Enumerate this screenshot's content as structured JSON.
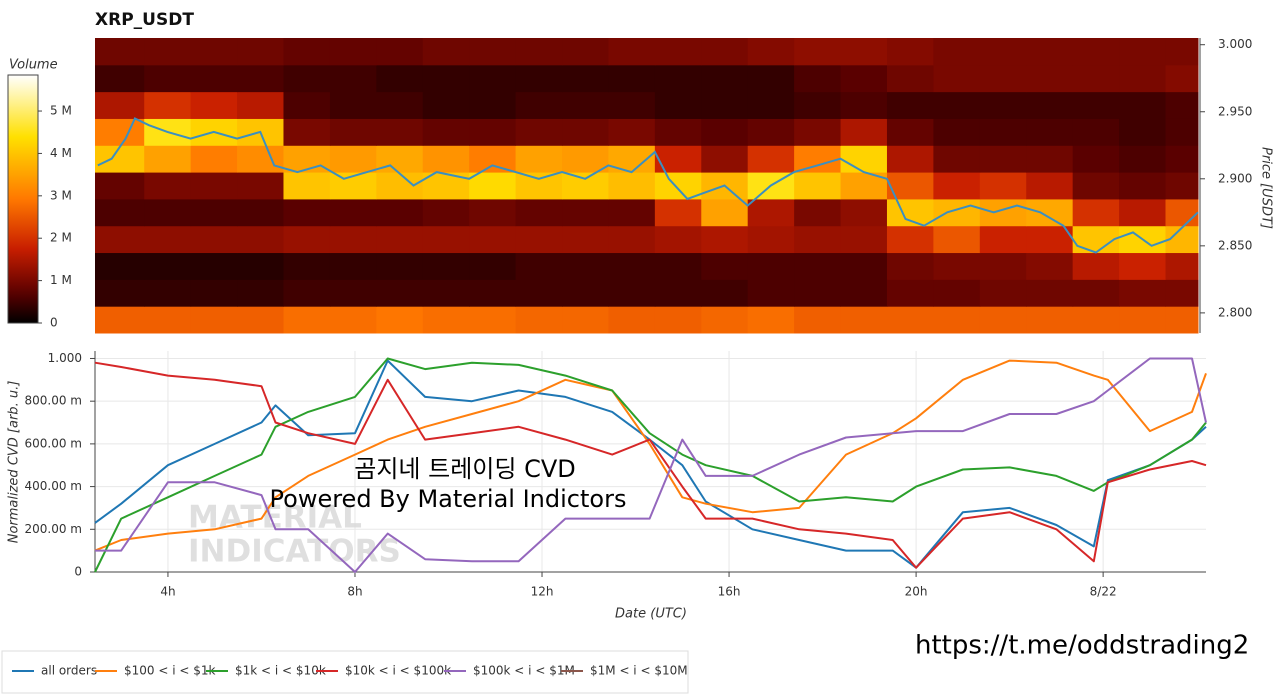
{
  "chart_data": [
    {
      "type": "heatmap",
      "title": "XRP_USDT",
      "y_label": "Price [USDT]",
      "xlim": [
        2.44,
        26.2
      ],
      "ylim": [
        2.785,
        3.005
      ],
      "yticks": [
        {
          "value": 2.8,
          "label": "2.800"
        },
        {
          "value": 2.85,
          "label": "2.850"
        },
        {
          "value": 2.9,
          "label": "2.900"
        },
        {
          "value": 2.95,
          "label": "2.950"
        },
        {
          "value": 3,
          "label": "3.000"
        }
      ],
      "x_bins": [
        2.44,
        3.5,
        4.5,
        5.5,
        6.5,
        7.5,
        8.5,
        9.5,
        10.5,
        11.5,
        12.5,
        13.5,
        14.5,
        15.5,
        16.5,
        17.5,
        18.5,
        19.5,
        20.5,
        21.5,
        22.5,
        23.5,
        24.5,
        25.5,
        26.2
      ],
      "y_bins": [
        2.785,
        2.805,
        2.825,
        2.845,
        2.865,
        2.885,
        2.905,
        2.925,
        2.945,
        2.965,
        2.985,
        3.005
      ],
      "values": [
        [
          2600000.0,
          2600000.0,
          2600000.0,
          2600000.0,
          2800000.0,
          2800000.0,
          2900000.0,
          2800000.0,
          2800000.0,
          2700000.0,
          2700000.0,
          2600000.0,
          2600000.0,
          2700000.0,
          2800000.0,
          2600000.0,
          2600000.0,
          2600000.0,
          2600000.0,
          2600000.0,
          2600000.0,
          2600000.0,
          2600000.0,
          2600000.0
        ],
        [
          400000.0,
          400000.0,
          400000.0,
          400000.0,
          500000.0,
          500000.0,
          500000.0,
          500000.0,
          500000.0,
          500000.0,
          500000.0,
          500000.0,
          500000.0,
          500000.0,
          600000.0,
          600000.0,
          600000.0,
          800000.0,
          800000.0,
          900000.0,
          900000.0,
          900000.0,
          1000000.0,
          1000000.0
        ],
        [
          300000.0,
          300000.0,
          300000.0,
          300000.0,
          400000.0,
          400000.0,
          400000.0,
          400000.0,
          400000.0,
          500000.0,
          500000.0,
          500000.0,
          500000.0,
          600000.0,
          600000.0,
          600000.0,
          600000.0,
          900000.0,
          1000000.0,
          1000000.0,
          1100000.0,
          1600000.0,
          1800000.0,
          1500000.0
        ],
        [
          1200000.0,
          1200000.0,
          1200000.0,
          1200000.0,
          1300000.0,
          1300000.0,
          1300000.0,
          1300000.0,
          1300000.0,
          1300000.0,
          1300000.0,
          1300000.0,
          1400000.0,
          1500000.0,
          1400000.0,
          1300000.0,
          1300000.0,
          2000000.0,
          2500000.0,
          1800000.0,
          1800000.0,
          4000000.0,
          4200000.0,
          3800000.0
        ],
        [
          600000.0,
          600000.0,
          600000.0,
          600000.0,
          700000.0,
          700000.0,
          700000.0,
          800000.0,
          900000.0,
          800000.0,
          800000.0,
          800000.0,
          2000000.0,
          3500000.0,
          1500000.0,
          1000000.0,
          1200000.0,
          4000000.0,
          3800000.0,
          3500000.0,
          3600000.0,
          2000000.0,
          1600000.0,
          2500000.0
        ],
        [
          800000.0,
          1000000.0,
          1000000.0,
          1000000.0,
          4000000.0,
          4100000.0,
          3900000.0,
          4000000.0,
          4300000.0,
          4000000.0,
          4100000.0,
          3900000.0,
          4200000.0,
          3800000.0,
          4500000.0,
          4000000.0,
          3500000.0,
          2500000.0,
          1800000.0,
          2000000.0,
          1600000.0,
          900000.0,
          800000.0,
          900000.0
        ],
        [
          4000000.0,
          3500000.0,
          3000000.0,
          3200000.0,
          3500000.0,
          3400000.0,
          3600000.0,
          3300000.0,
          3000000.0,
          3500000.0,
          3400000.0,
          3600000.0,
          1800000.0,
          1200000.0,
          2000000.0,
          3000000.0,
          4200000.0,
          1500000.0,
          900000.0,
          900000.0,
          900000.0,
          700000.0,
          600000.0,
          700000.0
        ],
        [
          3000000.0,
          4500000.0,
          4200000.0,
          4000000.0,
          1000000.0,
          900000.0,
          900000.0,
          800000.0,
          800000.0,
          900000.0,
          900000.0,
          1000000.0,
          800000.0,
          700000.0,
          800000.0,
          1000000.0,
          1500000.0,
          800000.0,
          600000.0,
          600000.0,
          600000.0,
          600000.0,
          500000.0,
          600000.0
        ],
        [
          1500000.0,
          2000000.0,
          1800000.0,
          1600000.0,
          600000.0,
          500000.0,
          500000.0,
          400000.0,
          400000.0,
          500000.0,
          500000.0,
          500000.0,
          400000.0,
          400000.0,
          400000.0,
          500000.0,
          600000.0,
          500000.0,
          500000.0,
          500000.0,
          500000.0,
          500000.0,
          500000.0,
          600000.0
        ],
        [
          500000.0,
          600000.0,
          600000.0,
          600000.0,
          500000.0,
          500000.0,
          400000.0,
          400000.0,
          400000.0,
          400000.0,
          400000.0,
          400000.0,
          400000.0,
          400000.0,
          400000.0,
          600000.0,
          700000.0,
          900000.0,
          1000000.0,
          1000000.0,
          1000000.0,
          1000000.0,
          1000000.0,
          1100000.0
        ],
        [
          900000.0,
          900000.0,
          900000.0,
          900000.0,
          800000.0,
          800000.0,
          800000.0,
          900000.0,
          900000.0,
          900000.0,
          900000.0,
          1000000.0,
          1000000.0,
          1000000.0,
          1100000.0,
          1200000.0,
          1200000.0,
          1100000.0,
          1000000.0,
          1000000.0,
          1000000.0,
          1000000.0,
          1000000.0,
          1000000.0
        ]
      ],
      "colorbar": {
        "label": "Volume",
        "lim": [
          0,
          5850000.0
        ],
        "ticks": [
          0,
          {
            "value": 1000000.0,
            "label": "1 M"
          },
          {
            "value": 2000000.0,
            "label": "2 M"
          },
          {
            "value": 3000000.0,
            "label": "3 M"
          },
          {
            "value": 4000000.0,
            "label": "4 M"
          },
          {
            "value": 5000000.0,
            "label": "5 M"
          }
        ]
      },
      "line": {
        "color": "#3b8fc0",
        "x": [
          2.5,
          2.8,
          3.1,
          3.3,
          3.6,
          4.0,
          4.5,
          5.0,
          5.5,
          6.0,
          6.3,
          6.8,
          7.3,
          7.8,
          8.3,
          8.8,
          9.3,
          9.8,
          10.5,
          11.0,
          11.5,
          12.0,
          12.5,
          13.0,
          13.5,
          14.0,
          14.5,
          14.8,
          15.2,
          15.6,
          16.0,
          16.5,
          17.0,
          17.5,
          18.0,
          18.5,
          19.0,
          19.5,
          19.9,
          20.3,
          20.8,
          21.3,
          21.8,
          22.3,
          22.8,
          23.3,
          23.6,
          24.0,
          24.4,
          24.8,
          25.2,
          25.6,
          26.2
        ],
        "values": [
          2.91,
          2.915,
          2.93,
          2.945,
          2.94,
          2.935,
          2.93,
          2.935,
          2.93,
          2.935,
          2.91,
          2.905,
          2.91,
          2.9,
          2.905,
          2.91,
          2.895,
          2.905,
          2.9,
          2.91,
          2.905,
          2.9,
          2.905,
          2.9,
          2.91,
          2.905,
          2.92,
          2.9,
          2.885,
          2.89,
          2.895,
          2.88,
          2.895,
          2.905,
          2.91,
          2.915,
          2.905,
          2.9,
          2.87,
          2.865,
          2.875,
          2.88,
          2.875,
          2.88,
          2.875,
          2.865,
          2.85,
          2.845,
          2.855,
          2.86,
          2.85,
          2.855,
          2.875
        ]
      }
    },
    {
      "type": "line",
      "x_label": "Date (UTC)",
      "y_label": "Normalized CVD [arb. u.]",
      "xlim": [
        2.44,
        26.2
      ],
      "ylim": [
        0,
        1.035
      ],
      "grid": true,
      "xticks": [
        {
          "value": 4,
          "label": "4h"
        },
        {
          "value": 8,
          "label": "8h"
        },
        {
          "value": 12,
          "label": "12h"
        },
        {
          "value": 16,
          "label": "16h"
        },
        {
          "value": 20,
          "label": "20h"
        },
        {
          "value": 24,
          "label": "8/22"
        }
      ],
      "yticks": [
        0,
        {
          "value": 0.2,
          "label": "200.00 m"
        },
        {
          "value": 0.4,
          "label": "400.00 m"
        },
        {
          "value": 0.6,
          "label": "600.00 m"
        },
        {
          "value": 0.8,
          "label": "800.00 m"
        },
        {
          "value": 1,
          "label": "1.000"
        }
      ],
      "x": [
        2.44,
        3,
        4,
        5,
        6,
        6.3,
        7,
        8,
        8.7,
        9.5,
        10.5,
        11.5,
        12.5,
        13.5,
        14.3,
        15,
        15.5,
        16.5,
        17.5,
        18.5,
        19.5,
        20,
        21,
        22,
        23,
        23.8,
        24.1,
        25,
        25.9,
        26.2
      ],
      "series": [
        {
          "name": "all orders",
          "color": "#1f77b4",
          "values": [
            0.23,
            0.32,
            0.5,
            0.6,
            0.7,
            0.78,
            0.64,
            0.65,
            0.99,
            0.82,
            0.8,
            0.85,
            0.82,
            0.75,
            0.62,
            0.5,
            0.33,
            0.2,
            0.15,
            0.1,
            0.1,
            0.02,
            0.28,
            0.3,
            0.22,
            0.12,
            0.43,
            0.5,
            0.62,
            0.68
          ]
        },
        {
          "name": "$100 < i < $1k",
          "color": "#ff7f0e",
          "values": [
            0.1,
            0.15,
            0.18,
            0.2,
            0.25,
            0.35,
            0.45,
            0.55,
            0.62,
            0.68,
            0.74,
            0.8,
            0.9,
            0.85,
            0.6,
            0.35,
            0.32,
            0.28,
            0.3,
            0.55,
            0.65,
            0.72,
            0.9,
            0.99,
            0.98,
            0.92,
            0.9,
            0.66,
            0.75,
            0.93
          ]
        },
        {
          "name": "$1k < i < $10k",
          "color": "#2ca02c",
          "values": [
            0.0,
            0.25,
            0.35,
            0.45,
            0.55,
            0.68,
            0.75,
            0.82,
            1.0,
            0.95,
            0.98,
            0.97,
            0.92,
            0.85,
            0.65,
            0.55,
            0.5,
            0.45,
            0.33,
            0.35,
            0.33,
            0.4,
            0.48,
            0.49,
            0.45,
            0.38,
            0.42,
            0.5,
            0.62,
            0.7
          ]
        },
        {
          "name": "$10k < i < $100k",
          "color": "#d62728",
          "values": [
            0.98,
            0.96,
            0.92,
            0.9,
            0.87,
            0.7,
            0.65,
            0.6,
            0.9,
            0.62,
            0.65,
            0.68,
            0.62,
            0.55,
            0.62,
            0.4,
            0.25,
            0.25,
            0.2,
            0.18,
            0.15,
            0.02,
            0.25,
            0.28,
            0.2,
            0.05,
            0.42,
            0.48,
            0.52,
            0.5
          ]
        },
        {
          "name": "$100k < i < $1M",
          "color": "#9467bd",
          "values": [
            0.1,
            0.1,
            0.42,
            0.42,
            0.36,
            0.2,
            0.2,
            0.0,
            0.18,
            0.06,
            0.05,
            0.05,
            0.25,
            0.25,
            0.25,
            0.62,
            0.45,
            0.45,
            0.55,
            0.63,
            0.65,
            0.66,
            0.66,
            0.74,
            0.74,
            0.8,
            0.85,
            1.0,
            1.0,
            0.7
          ]
        },
        {
          "name": "$1M < i < $10M",
          "color": "#8c564b",
          "values": [
            null,
            null,
            null,
            null,
            null,
            null,
            null,
            null,
            null,
            null,
            null,
            null,
            null,
            null,
            null,
            null,
            null,
            null,
            null,
            null,
            null,
            null,
            null,
            null,
            null,
            null,
            null,
            null,
            null,
            null
          ]
        }
      ],
      "annotations": [
        "곰지네 트레이딩 CVD",
        "Powered By Material Indictors"
      ],
      "watermark": [
        "MATERIAL",
        "INDICATORS"
      ]
    }
  ],
  "footer_link": "https://t.me/oddstrading2"
}
